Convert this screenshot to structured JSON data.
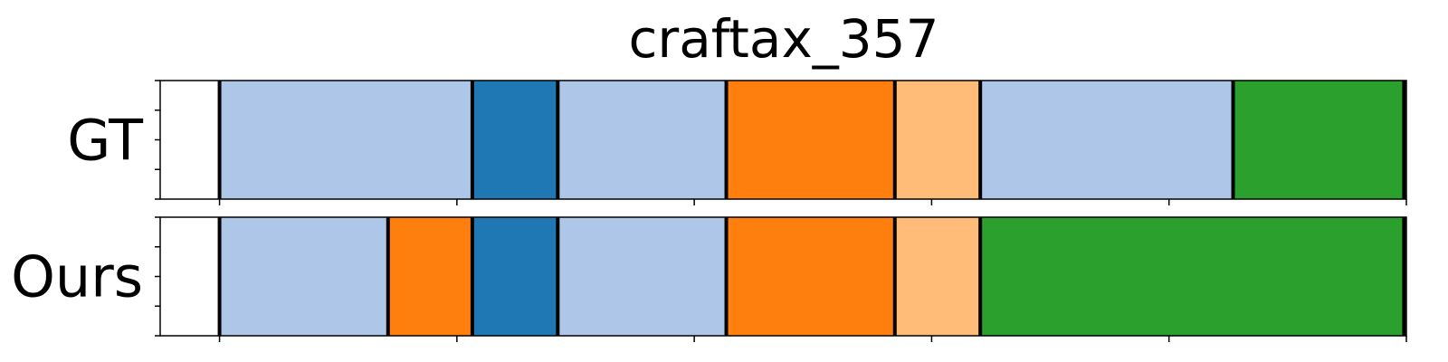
{
  "chart_data": {
    "type": "segmentation-timeline",
    "title": "craftax_357",
    "x_range": [
      0,
      105
    ],
    "x_ticks": [
      5,
      25,
      45,
      65,
      85,
      105
    ],
    "rows": [
      {
        "label": "GT",
        "segments": [
          {
            "start": 5,
            "end": 26.3,
            "color": "#aec7e8"
          },
          {
            "start": 26.3,
            "end": 33.5,
            "color": "#1f77b4"
          },
          {
            "start": 33.5,
            "end": 47.7,
            "color": "#aec7e8"
          },
          {
            "start": 47.7,
            "end": 61.9,
            "color": "#ff7f0e"
          },
          {
            "start": 61.9,
            "end": 69.1,
            "color": "#ffbb78"
          },
          {
            "start": 69.1,
            "end": 90.4,
            "color": "#aec7e8"
          },
          {
            "start": 90.4,
            "end": 104.8,
            "color": "#2ca02c"
          }
        ]
      },
      {
        "label": "Ours",
        "segments": [
          {
            "start": 5,
            "end": 19.2,
            "color": "#aec7e8"
          },
          {
            "start": 19.2,
            "end": 26.3,
            "color": "#ff7f0e"
          },
          {
            "start": 26.3,
            "end": 33.5,
            "color": "#1f77b4"
          },
          {
            "start": 33.5,
            "end": 47.7,
            "color": "#aec7e8"
          },
          {
            "start": 47.7,
            "end": 61.9,
            "color": "#ff7f0e"
          },
          {
            "start": 61.9,
            "end": 69.1,
            "color": "#ffbb78"
          },
          {
            "start": 69.1,
            "end": 104.8,
            "color": "#2ca02c"
          }
        ]
      }
    ],
    "grid": false,
    "legend": "none"
  }
}
